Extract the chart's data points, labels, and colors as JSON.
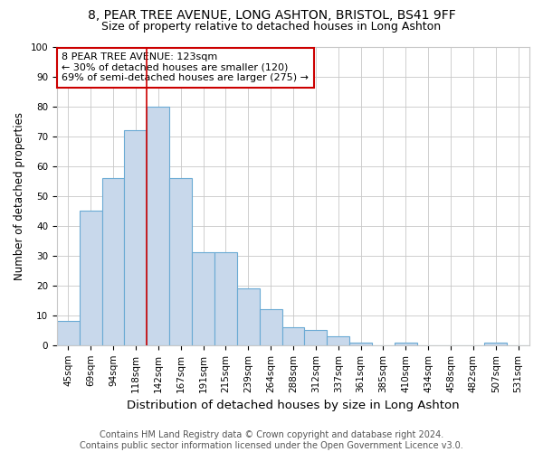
{
  "title1": "8, PEAR TREE AVENUE, LONG ASHTON, BRISTOL, BS41 9FF",
  "title2": "Size of property relative to detached houses in Long Ashton",
  "xlabel": "Distribution of detached houses by size in Long Ashton",
  "ylabel": "Number of detached properties",
  "footer1": "Contains HM Land Registry data © Crown copyright and database right 2024.",
  "footer2": "Contains public sector information licensed under the Open Government Licence v3.0.",
  "annotation_line1": "8 PEAR TREE AVENUE: 123sqm",
  "annotation_line2": "← 30% of detached houses are smaller (120)",
  "annotation_line3": "69% of semi-detached houses are larger (275) →",
  "bar_labels": [
    "45sqm",
    "69sqm",
    "94sqm",
    "118sqm",
    "142sqm",
    "167sqm",
    "191sqm",
    "215sqm",
    "239sqm",
    "264sqm",
    "288sqm",
    "312sqm",
    "337sqm",
    "361sqm",
    "385sqm",
    "410sqm",
    "434sqm",
    "458sqm",
    "482sqm",
    "507sqm",
    "531sqm"
  ],
  "bar_values": [
    8,
    45,
    56,
    72,
    80,
    56,
    31,
    31,
    19,
    12,
    6,
    5,
    3,
    1,
    0,
    1,
    0,
    0,
    0,
    1,
    0
  ],
  "bar_color": "#c8d8eb",
  "bar_edge_color": "#6aaad4",
  "vline_color": "#cc0000",
  "vline_x": 3.5,
  "ylim": [
    0,
    100
  ],
  "yticks": [
    0,
    10,
    20,
    30,
    40,
    50,
    60,
    70,
    80,
    90,
    100
  ],
  "bg_color": "#ffffff",
  "grid_color": "#c8c8c8",
  "annotation_box_color": "#cc0000",
  "title1_fontsize": 10,
  "title2_fontsize": 9,
  "xlabel_fontsize": 9.5,
  "ylabel_fontsize": 8.5,
  "tick_fontsize": 7.5,
  "footer_fontsize": 7,
  "annot_fontsize": 8
}
